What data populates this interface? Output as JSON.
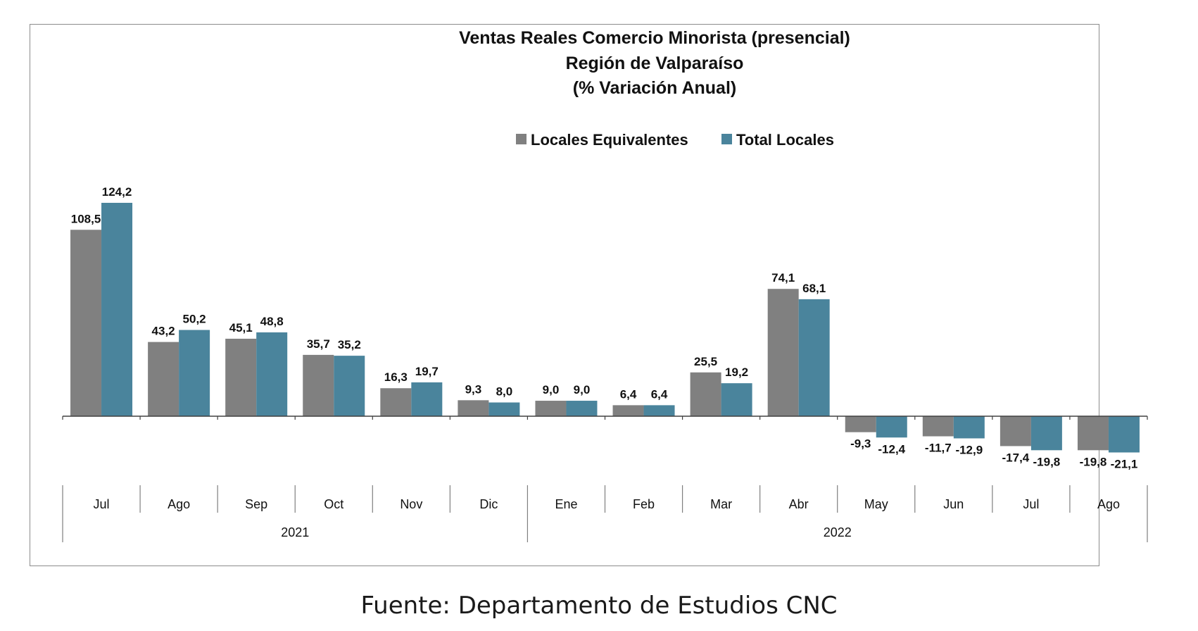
{
  "chart_data": {
    "type": "bar",
    "title": [
      "Ventas Reales Comercio Minorista (presencial)",
      "Región de Valparaíso",
      "(% Variación Anual)"
    ],
    "categories": [
      "Jul",
      "Ago",
      "Sep",
      "Oct",
      "Nov",
      "Dic",
      "Ene",
      "Feb",
      "Mar",
      "Abr",
      "May",
      "Jun",
      "Jul",
      "Ago"
    ],
    "groups": [
      {
        "label": "2021",
        "start": 0,
        "end": 5
      },
      {
        "label": "2022",
        "start": 6,
        "end": 13
      }
    ],
    "series": [
      {
        "name": "Locales Equivalentes",
        "color": "#808080",
        "values": [
          108.5,
          43.2,
          45.1,
          35.7,
          16.3,
          9.3,
          9.0,
          6.4,
          25.5,
          74.1,
          -9.3,
          -11.7,
          -17.4,
          -19.8
        ],
        "labels": [
          "108,5",
          "43,2",
          "45,1",
          "35,7",
          "16,3",
          "9,3",
          "9,0",
          "6,4",
          "25,5",
          "74,1",
          "-9,3",
          "-11,7",
          "-17,4",
          "-19,8"
        ]
      },
      {
        "name": "Total Locales",
        "color": "#4a849c",
        "values": [
          124.2,
          50.2,
          48.8,
          35.2,
          19.7,
          8.0,
          9.0,
          6.4,
          19.2,
          68.1,
          -12.4,
          -12.9,
          -19.8,
          -21.1
        ],
        "labels": [
          "124,2",
          "50,2",
          "48,8",
          "35,2",
          "19,7",
          "8,0",
          "9,0",
          "6,4",
          "19,2",
          "68,1",
          "-12,4",
          "-12,9",
          "-19,8",
          "-21,1"
        ]
      }
    ],
    "legend_position": "top-center",
    "grid": false
  },
  "source": "Fuente: Departamento de Estudios CNC"
}
